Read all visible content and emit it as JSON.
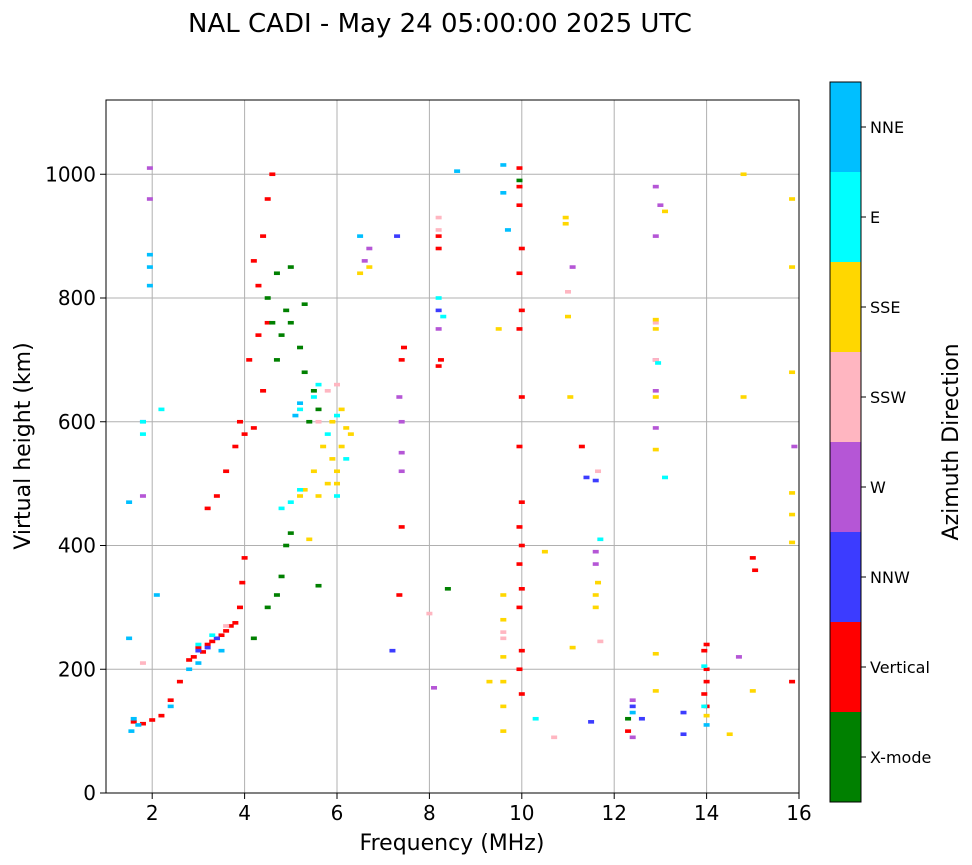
{
  "chart_data": {
    "type": "scatter",
    "title": "NAL CADI - May 24 05:00:00 2025 UTC",
    "xlabel": "Frequency (MHz)",
    "ylabel": "Virtual height (km)",
    "xlim": [
      1.0,
      16.0
    ],
    "ylim": [
      0,
      1120
    ],
    "xticks": [
      2,
      4,
      6,
      8,
      10,
      12,
      14,
      16
    ],
    "yticks": [
      0,
      200,
      400,
      600,
      800,
      1000
    ],
    "grid": true,
    "colorbar": {
      "label": "Azimuth Direction",
      "categories": [
        {
          "name": "X-mode",
          "color": "#008000"
        },
        {
          "name": "Vertical",
          "color": "#ff0000"
        },
        {
          "name": "NNW",
          "color": "#3c3cff"
        },
        {
          "name": "W",
          "color": "#b556d6"
        },
        {
          "name": "SSW",
          "color": "#ffb6c1"
        },
        {
          "name": "SSE",
          "color": "#ffd700"
        },
        {
          "name": "E",
          "color": "#00ffff"
        },
        {
          "name": "NNE",
          "color": "#00bfff"
        }
      ]
    },
    "groups": [
      {
        "name": "Vertical",
        "points": [
          [
            1.6,
            115
          ],
          [
            1.8,
            112
          ],
          [
            2.0,
            118
          ],
          [
            2.2,
            125
          ],
          [
            2.4,
            150
          ],
          [
            2.6,
            180
          ],
          [
            2.8,
            215
          ],
          [
            3.0,
            235
          ],
          [
            3.2,
            240
          ],
          [
            3.4,
            250
          ],
          [
            3.6,
            262
          ],
          [
            3.8,
            275
          ],
          [
            3.9,
            300
          ],
          [
            3.95,
            340
          ],
          [
            4.0,
            380
          ],
          [
            2.9,
            220
          ],
          [
            3.1,
            228
          ],
          [
            3.3,
            245
          ],
          [
            3.5,
            255
          ],
          [
            3.7,
            270
          ],
          [
            3.2,
            460
          ],
          [
            3.4,
            480
          ],
          [
            3.6,
            520
          ],
          [
            3.8,
            560
          ],
          [
            3.9,
            600
          ],
          [
            4.0,
            580
          ],
          [
            4.2,
            590
          ],
          [
            4.4,
            650
          ],
          [
            4.1,
            700
          ],
          [
            4.3,
            740
          ],
          [
            4.5,
            760
          ],
          [
            4.3,
            820
          ],
          [
            4.4,
            900
          ],
          [
            4.5,
            960
          ],
          [
            4.6,
            1000
          ],
          [
            4.2,
            860
          ],
          [
            7.4,
            700
          ],
          [
            7.45,
            720
          ],
          [
            8.2,
            880
          ],
          [
            8.2,
            900
          ],
          [
            8.25,
            700
          ],
          [
            8.2,
            690
          ],
          [
            9.95,
            1010
          ],
          [
            9.95,
            980
          ],
          [
            9.95,
            950
          ],
          [
            10.0,
            880
          ],
          [
            9.95,
            840
          ],
          [
            10.0,
            780
          ],
          [
            9.95,
            750
          ],
          [
            10.0,
            640
          ],
          [
            9.95,
            560
          ],
          [
            10.0,
            470
          ],
          [
            9.95,
            430
          ],
          [
            10.0,
            400
          ],
          [
            9.95,
            370
          ],
          [
            10.0,
            330
          ],
          [
            9.95,
            300
          ],
          [
            10.0,
            230
          ],
          [
            9.95,
            200
          ],
          [
            10.0,
            160
          ],
          [
            11.3,
            560
          ],
          [
            14.0,
            240
          ],
          [
            13.95,
            230
          ],
          [
            14.0,
            200
          ],
          [
            14.0,
            180
          ],
          [
            13.95,
            160
          ],
          [
            14.0,
            140
          ],
          [
            15.0,
            380
          ],
          [
            15.05,
            360
          ],
          [
            15.85,
            180
          ],
          [
            12.3,
            100
          ],
          [
            7.35,
            320
          ],
          [
            7.4,
            430
          ]
        ]
      },
      {
        "name": "X-mode",
        "points": [
          [
            4.5,
            800
          ],
          [
            4.7,
            840
          ],
          [
            4.9,
            780
          ],
          [
            4.6,
            760
          ],
          [
            4.8,
            740
          ],
          [
            5.0,
            760
          ],
          [
            5.2,
            720
          ],
          [
            4.7,
            700
          ],
          [
            5.3,
            680
          ],
          [
            5.5,
            650
          ],
          [
            5.6,
            620
          ],
          [
            5.4,
            600
          ],
          [
            5.0,
            850
          ],
          [
            5.3,
            790
          ],
          [
            4.2,
            250
          ],
          [
            4.5,
            300
          ],
          [
            4.7,
            320
          ],
          [
            4.8,
            350
          ],
          [
            4.9,
            400
          ],
          [
            5.0,
            420
          ],
          [
            5.6,
            335
          ],
          [
            8.4,
            330
          ],
          [
            9.95,
            990
          ],
          [
            12.3,
            120
          ]
        ]
      },
      {
        "name": "NNW",
        "points": [
          [
            3.0,
            230
          ],
          [
            3.2,
            235
          ],
          [
            3.4,
            250
          ],
          [
            8.2,
            780
          ],
          [
            7.3,
            900
          ],
          [
            12.4,
            140
          ],
          [
            12.6,
            120
          ],
          [
            11.5,
            115
          ],
          [
            13.5,
            130
          ],
          [
            13.5,
            95
          ],
          [
            11.4,
            510
          ],
          [
            11.6,
            505
          ],
          [
            1.8,
            600
          ],
          [
            7.2,
            230
          ]
        ]
      },
      {
        "name": "W",
        "points": [
          [
            1.95,
            1010
          ],
          [
            1.95,
            960
          ],
          [
            1.8,
            480
          ],
          [
            6.6,
            860
          ],
          [
            6.7,
            880
          ],
          [
            7.35,
            640
          ],
          [
            7.4,
            600
          ],
          [
            7.4,
            550
          ],
          [
            7.4,
            520
          ],
          [
            8.2,
            750
          ],
          [
            11.1,
            850
          ],
          [
            11.6,
            390
          ],
          [
            11.6,
            370
          ],
          [
            12.9,
            980
          ],
          [
            12.9,
            900
          ],
          [
            12.9,
            700
          ],
          [
            12.9,
            650
          ],
          [
            12.9,
            590
          ],
          [
            13.0,
            950
          ],
          [
            15.9,
            560
          ],
          [
            14.7,
            220
          ],
          [
            12.4,
            150
          ],
          [
            12.4,
            90
          ],
          [
            8.1,
            170
          ]
        ]
      },
      {
        "name": "SSW",
        "points": [
          [
            1.8,
            210
          ],
          [
            3.6,
            270
          ],
          [
            5.6,
            600
          ],
          [
            6.0,
            660
          ],
          [
            5.8,
            650
          ],
          [
            8.2,
            930
          ],
          [
            8.2,
            910
          ],
          [
            8.0,
            290
          ],
          [
            11.0,
            810
          ],
          [
            11.65,
            520
          ],
          [
            11.7,
            245
          ],
          [
            12.9,
            760
          ],
          [
            12.9,
            700
          ],
          [
            10.7,
            90
          ],
          [
            9.6,
            250
          ],
          [
            9.6,
            260
          ]
        ]
      },
      {
        "name": "SSE",
        "points": [
          [
            5.6,
            480
          ],
          [
            5.8,
            500
          ],
          [
            6.0,
            520
          ],
          [
            5.9,
            540
          ],
          [
            6.1,
            560
          ],
          [
            6.2,
            590
          ],
          [
            5.5,
            520
          ],
          [
            5.3,
            490
          ],
          [
            5.2,
            480
          ],
          [
            5.9,
            600
          ],
          [
            6.1,
            620
          ],
          [
            6.3,
            580
          ],
          [
            5.7,
            560
          ],
          [
            6.0,
            500
          ],
          [
            5.4,
            410
          ],
          [
            6.5,
            840
          ],
          [
            6.7,
            850
          ],
          [
            9.6,
            100
          ],
          [
            9.6,
            140
          ],
          [
            9.6,
            180
          ],
          [
            9.6,
            220
          ],
          [
            9.6,
            280
          ],
          [
            9.6,
            320
          ],
          [
            9.3,
            180
          ],
          [
            9.5,
            750
          ],
          [
            10.5,
            390
          ],
          [
            10.95,
            930
          ],
          [
            10.95,
            920
          ],
          [
            11.05,
            640
          ],
          [
            11.0,
            770
          ],
          [
            11.6,
            300
          ],
          [
            11.6,
            320
          ],
          [
            11.65,
            340
          ],
          [
            11.1,
            235
          ],
          [
            12.9,
            765
          ],
          [
            12.9,
            750
          ],
          [
            12.9,
            640
          ],
          [
            12.9,
            555
          ],
          [
            12.9,
            225
          ],
          [
            12.9,
            165
          ],
          [
            14.0,
            125
          ],
          [
            14.5,
            95
          ],
          [
            14.8,
            1000
          ],
          [
            14.8,
            640
          ],
          [
            15.0,
            165
          ],
          [
            15.85,
            960
          ],
          [
            15.85,
            850
          ],
          [
            15.85,
            680
          ],
          [
            15.85,
            485
          ],
          [
            15.85,
            450
          ],
          [
            15.85,
            405
          ],
          [
            13.1,
            940
          ]
        ]
      },
      {
        "name": "E",
        "points": [
          [
            3.0,
            240
          ],
          [
            3.3,
            255
          ],
          [
            5.2,
            620
          ],
          [
            5.5,
            640
          ],
          [
            5.6,
            660
          ],
          [
            5.8,
            580
          ],
          [
            6.0,
            610
          ],
          [
            5.0,
            470
          ],
          [
            5.2,
            490
          ],
          [
            4.8,
            460
          ],
          [
            6.2,
            540
          ],
          [
            6.0,
            480
          ],
          [
            1.8,
            600
          ],
          [
            1.8,
            580
          ],
          [
            2.2,
            620
          ],
          [
            8.2,
            800
          ],
          [
            8.3,
            770
          ],
          [
            10.3,
            120
          ],
          [
            13.1,
            510
          ],
          [
            13.95,
            205
          ],
          [
            13.95,
            140
          ],
          [
            11.7,
            410
          ],
          [
            12.95,
            695
          ]
        ]
      },
      {
        "name": "NNE",
        "points": [
          [
            1.55,
            100
          ],
          [
            1.6,
            120
          ],
          [
            1.7,
            110
          ],
          [
            1.5,
            250
          ],
          [
            1.5,
            470
          ],
          [
            1.95,
            820
          ],
          [
            1.95,
            850
          ],
          [
            1.95,
            870
          ],
          [
            2.1,
            320
          ],
          [
            2.8,
            200
          ],
          [
            3.0,
            210
          ],
          [
            3.5,
            230
          ],
          [
            5.1,
            610
          ],
          [
            5.2,
            630
          ],
          [
            6.5,
            900
          ],
          [
            9.7,
            910
          ],
          [
            9.6,
            970
          ],
          [
            9.6,
            1015
          ],
          [
            12.4,
            130
          ],
          [
            14.0,
            110
          ],
          [
            8.6,
            1005
          ],
          [
            2.4,
            140
          ]
        ]
      }
    ]
  }
}
